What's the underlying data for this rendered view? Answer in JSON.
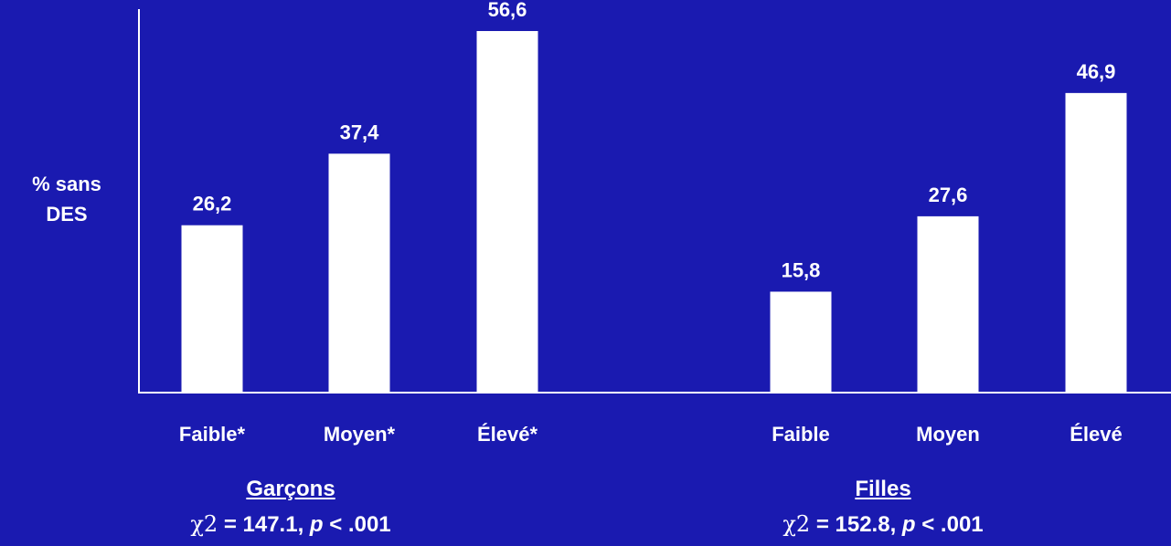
{
  "chart_data": {
    "type": "bar",
    "ylabel_line1": "% sans",
    "ylabel_line2": "DES",
    "ylim": [
      0,
      56.6
    ],
    "colors": {
      "background": "#1a1ab0",
      "bar": "#ffffff",
      "axis": "#ffffff"
    },
    "groups": [
      {
        "name": "Garçons",
        "stat_symbol": "χ2",
        "stat_text": " = 147.1, ",
        "p_symbol": "p",
        "p_text": " < .001",
        "categories": [
          "Faible*",
          "Moyen*",
          "Élevé*"
        ],
        "values": [
          26.2,
          37.4,
          56.6
        ],
        "value_labels": [
          "26,2",
          "37,4",
          "56,6"
        ]
      },
      {
        "name": "Filles",
        "stat_symbol": "χ2",
        "stat_text": " = 152.8, ",
        "p_symbol": "p",
        "p_text": " < .001",
        "categories": [
          "Faible",
          "Moyen",
          "Élevé"
        ],
        "values": [
          15.8,
          27.6,
          46.9
        ],
        "value_labels": [
          "15,8",
          "27,6",
          "46,9"
        ]
      }
    ]
  }
}
